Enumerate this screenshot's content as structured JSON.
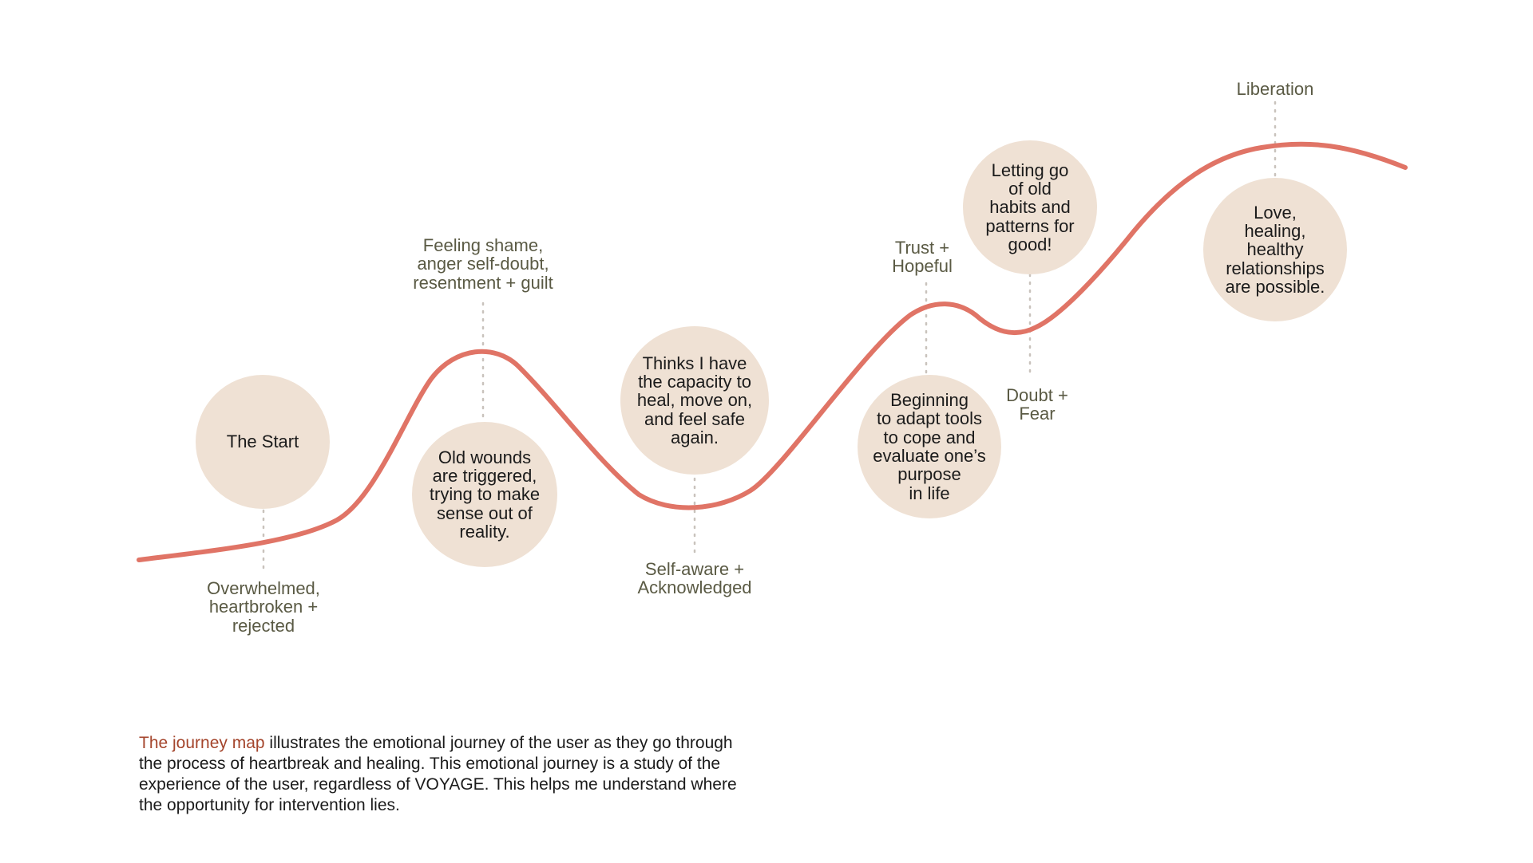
{
  "colors": {
    "curve": "#e07466",
    "bubble": "#efe1d4",
    "emotion_text": "#5a5a44",
    "highlight": "#a4452c"
  },
  "bubbles": [
    {
      "text": "The Start"
    },
    {
      "text": "Old wounds\nare triggered,\ntrying to make\nsense out of\nreality."
    },
    {
      "text": "Thinks I have\nthe capacity to\nheal, move on,\nand feel safe\nagain."
    },
    {
      "text": "Beginning\nto adapt tools\nto cope and\nevaluate one’s\npurpose\nin life"
    },
    {
      "text": "Letting go\nof old\nhabits and\npatterns for\ngood!"
    },
    {
      "text": "Love,\nhealing,\nhealthy\nrelationships\nare possible."
    }
  ],
  "emotions": [
    {
      "text": "Overwhelmed,\nheartbroken +\nrejected"
    },
    {
      "text": "Feeling shame,\nanger self-doubt,\nresentment + guilt"
    },
    {
      "text": "Self-aware +\nAcknowledged"
    },
    {
      "text": "Trust +\nHopeful"
    },
    {
      "text": "Doubt +\nFear"
    },
    {
      "text": "Liberation"
    }
  ],
  "description": {
    "highlight": "The journey map",
    "body": " illustrates the emotional journey of the user as they go through the process of heartbreak and healing. This emotional journey is a study of the experience of the user, regardless of VOYAGE. This helps me understand where the opportunity for intervention lies."
  }
}
